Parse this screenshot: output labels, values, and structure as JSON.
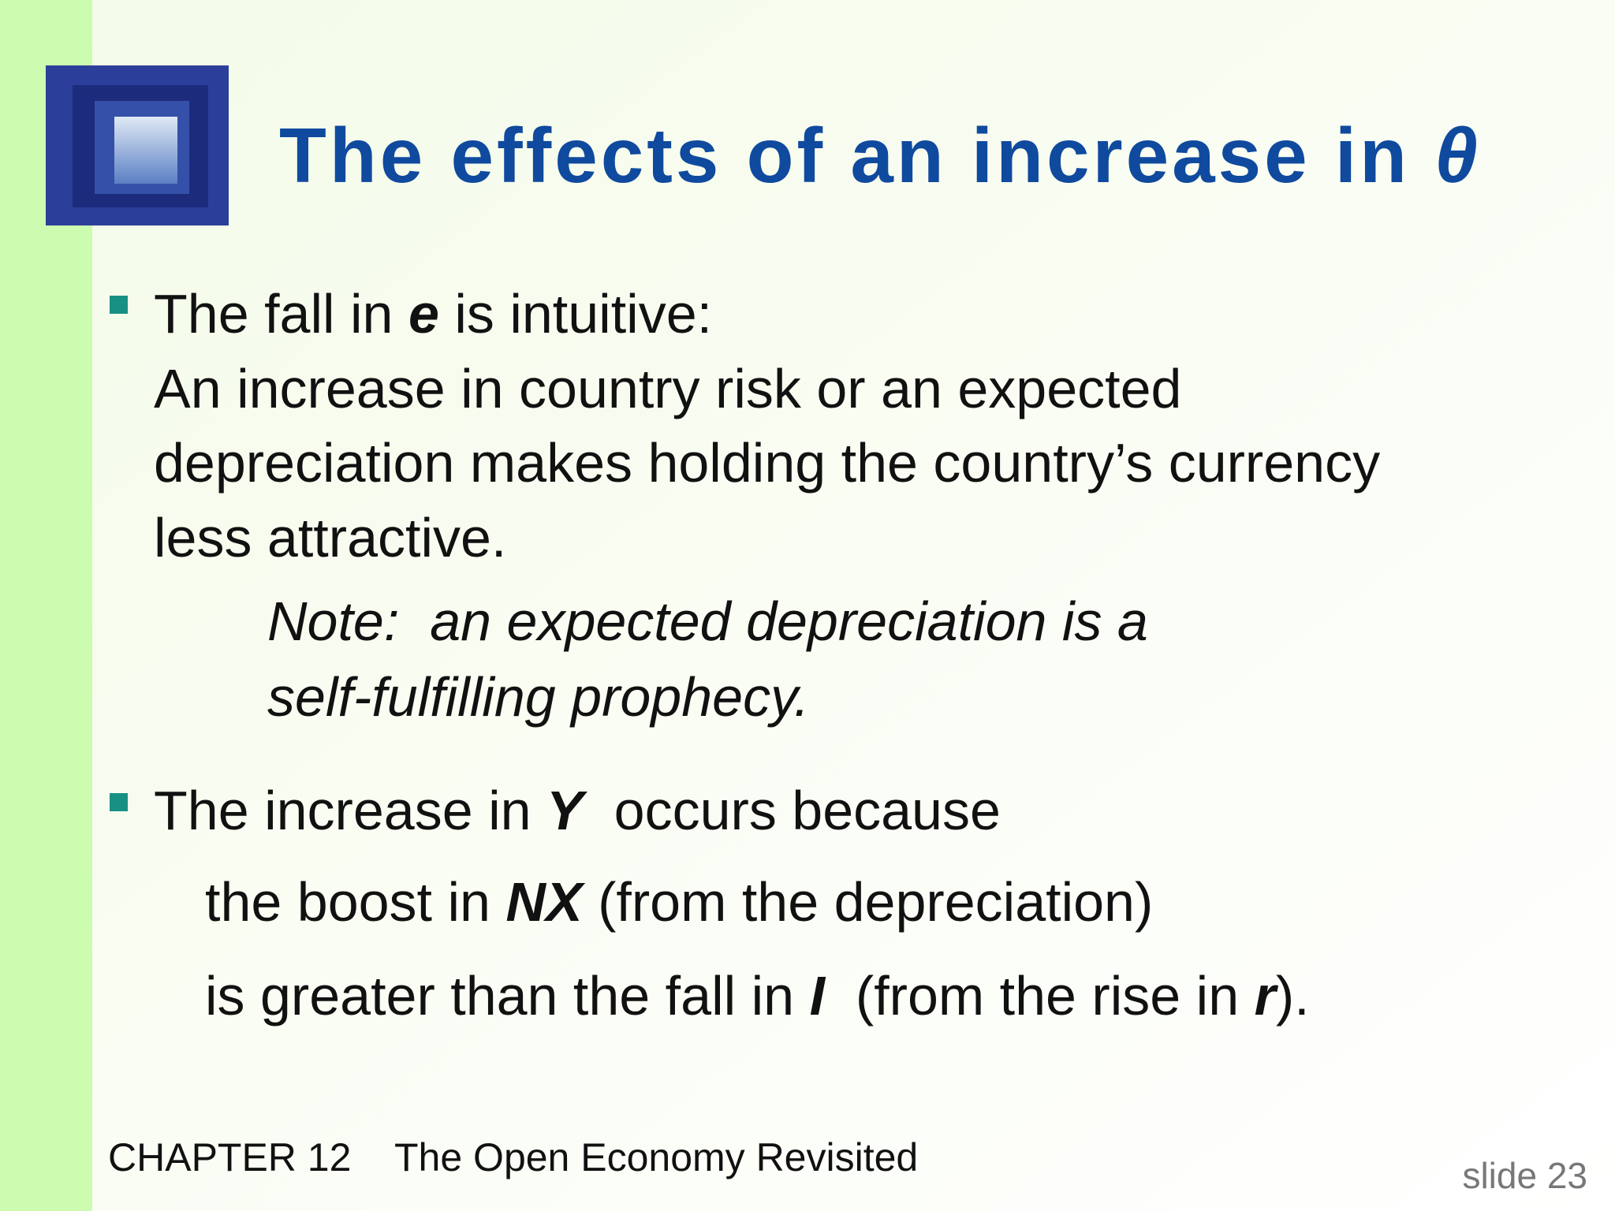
{
  "title": [
    "The effects of an increase in ",
    "θ"
  ],
  "bullets": [
    {
      "lines": [
        [
          "The fall in ",
          "e",
          " is intuitive:"
        ],
        [
          "An increase in country risk or an expected"
        ],
        [
          "depreciation makes holding the country’s currency"
        ],
        [
          "less attractive."
        ]
      ],
      "note": [
        "Note:  an expected depreciation is a",
        "self-fulfilling prophecy."
      ]
    },
    {
      "lines": [
        [
          "The increase in ",
          "Y",
          "  occurs because"
        ],
        [
          "the boost in ",
          "NX",
          " (from the depreciation)"
        ],
        [
          "is greater than the fall in ",
          "I",
          "  (from the rise in ",
          "r",
          ")."
        ]
      ]
    }
  ],
  "footer": {
    "chapter": "CHAPTER 12",
    "book": "The Open Economy Revisited",
    "slide": "slide 23"
  }
}
